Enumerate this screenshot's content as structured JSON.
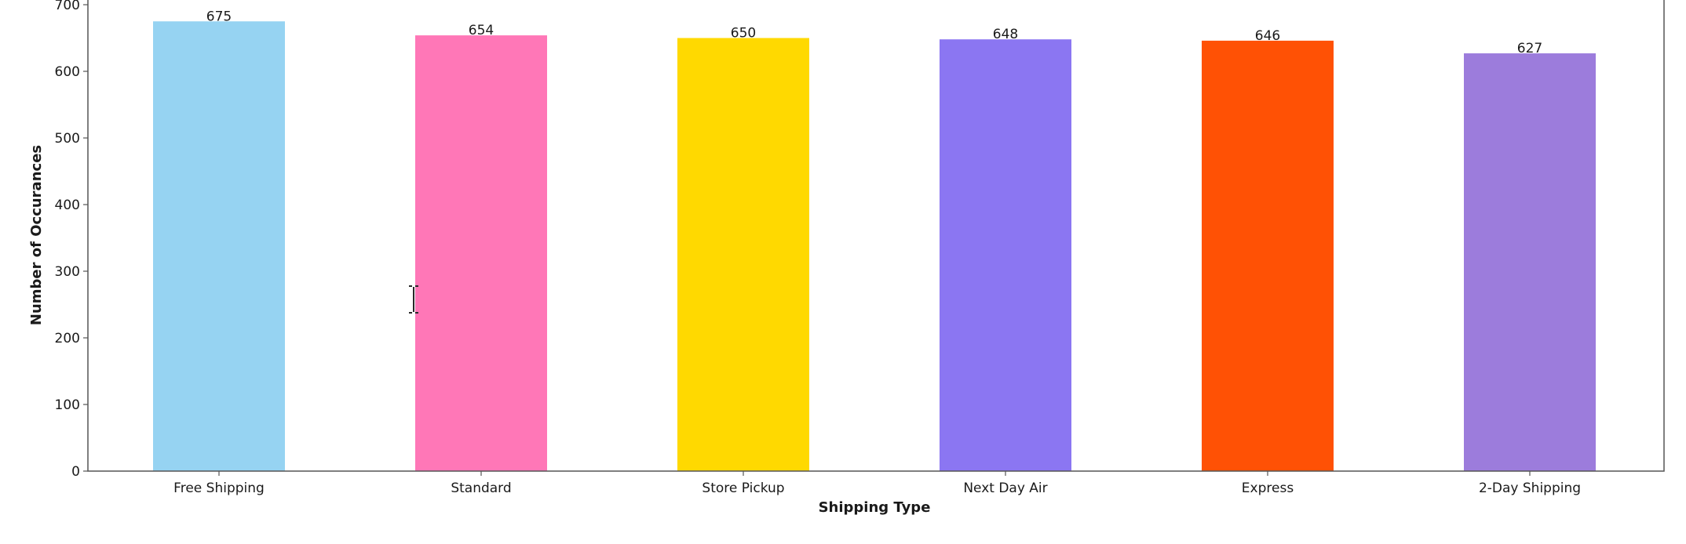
{
  "chart_data": {
    "type": "bar",
    "title": "",
    "xlabel": "Shipping Type",
    "ylabel": "Number of Occurances",
    "categories": [
      "Free Shipping",
      "Standard",
      "Store Pickup",
      "Next Day Air",
      "Express",
      "2-Day Shipping"
    ],
    "values": [
      675,
      654,
      650,
      648,
      646,
      627
    ],
    "value_labels": [
      "675",
      "654",
      "650",
      "648",
      "646",
      "627"
    ],
    "colors": [
      "#96d3f2",
      "#ff77b7",
      "#ffd900",
      "#8b76f2",
      "#ff5105",
      "#9c7cdc"
    ],
    "ylim": [
      0,
      700
    ],
    "yticks": [
      0,
      100,
      200,
      300,
      400,
      500,
      600,
      700
    ],
    "ytick_labels": [
      "0",
      "100",
      "200",
      "300",
      "400",
      "500",
      "600",
      "700"
    ],
    "grid": false,
    "legend": "none"
  },
  "overlay": {
    "cursor_icon": "text-cursor-icon"
  }
}
